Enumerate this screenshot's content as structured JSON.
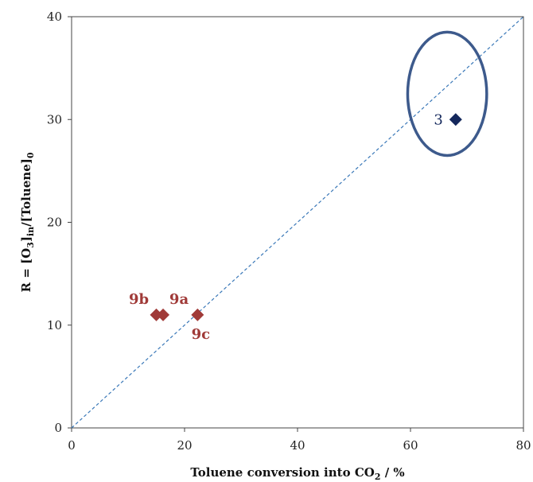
{
  "chart_data": {
    "type": "scatter",
    "title": "",
    "xlabel": "Toluene conversion into CO",
    "xlabel_sub": "2",
    "xlabel_suffix": " / %",
    "ylabel_prefix": "R = [O",
    "ylabel_sub1": "3",
    "ylabel_mid": "]",
    "ylabel_sub2": "in",
    "ylabel_mid2": "/[Toluene]",
    "ylabel_sub3": "0",
    "xlim": [
      0,
      80
    ],
    "ylim": [
      0,
      40
    ],
    "xticks": [
      0,
      20,
      40,
      60,
      80
    ],
    "yticks": [
      0,
      10,
      20,
      30,
      40
    ],
    "x_tick_labels": [
      "0",
      "20",
      "40",
      "60",
      "80"
    ],
    "y_tick_labels": [
      "0",
      "10",
      "20",
      "30",
      "40"
    ],
    "grid": false,
    "colors": {
      "primary": "#14285c",
      "secondary": "#a03a38",
      "line": "#3a78b8",
      "ellipse": "#3d5a8c"
    },
    "series": [
      {
        "color": "#a03a38",
        "marker": "diamond",
        "points": [
          {
            "x": 15,
            "y": 11,
            "label": "9b"
          },
          {
            "x": 16.2,
            "y": 11,
            "label": "9a"
          },
          {
            "x": 22.3,
            "y": 11,
            "label": "9c"
          }
        ]
      },
      {
        "color": "#14285c",
        "marker": "diamond",
        "points": [
          {
            "x": 68,
            "y": 30,
            "label": "3"
          }
        ]
      }
    ],
    "reference_line": {
      "style": "dashed",
      "from": [
        0,
        0
      ],
      "to": [
        80,
        40
      ]
    },
    "annotation": {
      "type": "ellipse",
      "center": [
        66.5,
        32.5
      ],
      "rx_data": 7,
      "ry_data": 6
    }
  }
}
